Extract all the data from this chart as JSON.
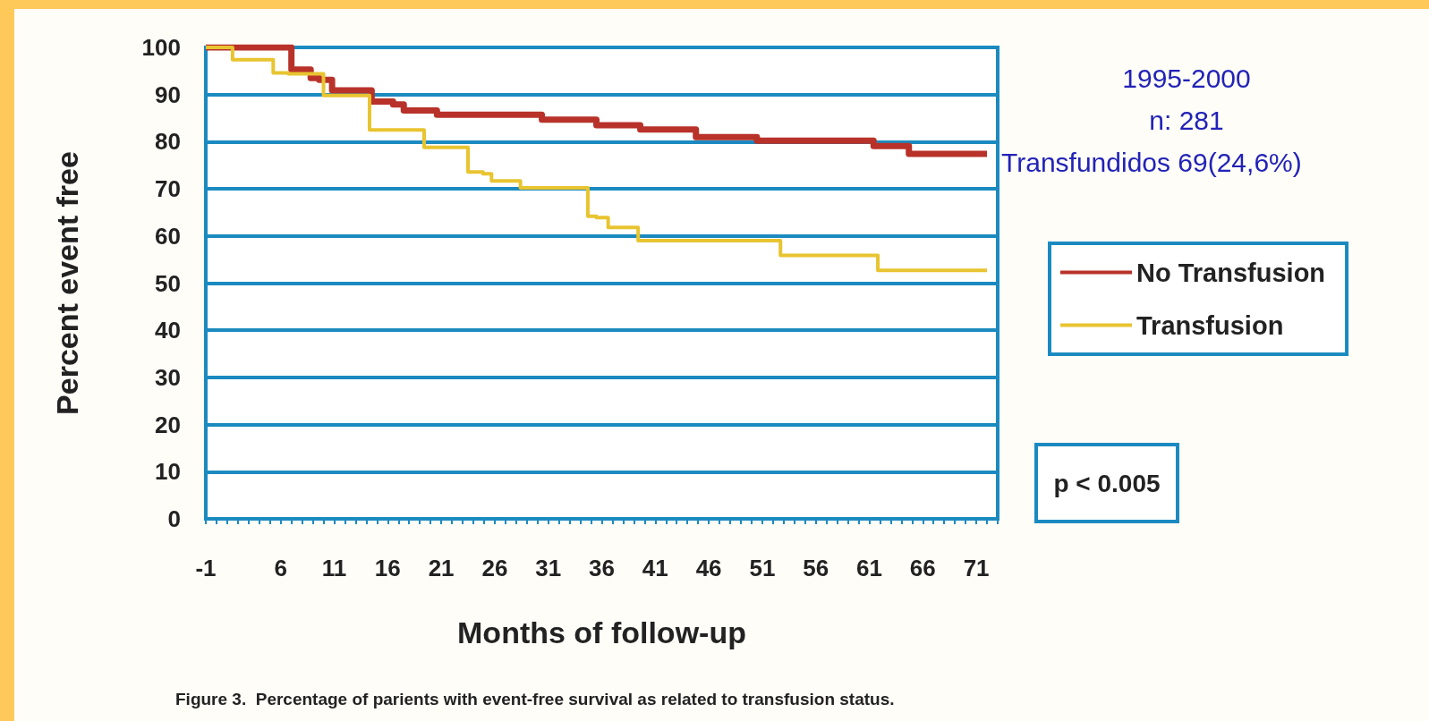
{
  "chart_data": {
    "type": "step",
    "xlabel": "Months of follow-up",
    "ylabel": "Percent event free",
    "xlim": [
      -1,
      73
    ],
    "xticks": [
      -1,
      6,
      11,
      16,
      21,
      26,
      31,
      36,
      41,
      46,
      51,
      56,
      61,
      66,
      71
    ],
    "ylim": [
      0,
      100
    ],
    "yticks": [
      0,
      10,
      20,
      30,
      40,
      50,
      60,
      70,
      80,
      90,
      100
    ],
    "grid": "y",
    "legend": "right",
    "marker": "none",
    "line_style": "solid",
    "series": [
      {
        "name": "No Transfusion",
        "color": "#b8322a",
        "x": [
          -1,
          3,
          7,
          8.8,
          9.6,
          10.8,
          12.4,
          14.5,
          16.5,
          17.5,
          19.8,
          20.6,
          29.6,
          30.4,
          34.1,
          35.5,
          38.6,
          39.6,
          43.4,
          44.8,
          49.4,
          50.5,
          60.4,
          61.4,
          63.5,
          64.7,
          72
        ],
        "values": [
          100,
          100,
          95.3,
          93.5,
          93.1,
          90.9,
          90.9,
          88.5,
          87.9,
          86.6,
          86.6,
          85.7,
          85.7,
          84.7,
          84.7,
          83.5,
          83.5,
          82.6,
          82.6,
          81,
          81,
          80.2,
          80.2,
          79.1,
          79.1,
          77.4,
          77.4
        ]
      },
      {
        "name": "Transfusion",
        "color": "#e8c430",
        "x": [
          -1,
          1.5,
          3.4,
          5.3,
          6.7,
          10,
          11.8,
          14.3,
          18.1,
          19.4,
          21.1,
          23.5,
          24.9,
          25.7,
          27.6,
          28.4,
          32.3,
          34.7,
          35.5,
          36.6,
          38.6,
          39.4,
          51,
          52.7,
          60.3,
          61.8,
          72
        ],
        "values": [
          100,
          97.4,
          97.4,
          94.6,
          94.4,
          89.8,
          89.8,
          82.5,
          82.5,
          78.8,
          78.8,
          73.6,
          73.2,
          71.7,
          71.7,
          70.2,
          70.2,
          64.2,
          63.9,
          61.8,
          61.8,
          59,
          59,
          55.9,
          55.9,
          52.7,
          52.7
        ]
      }
    ],
    "annotations": [
      "1995-2000",
      "n: 281",
      "Transfundidos 69(24,6%)",
      "p < 0.005",
      "Figure 3.  Percentage of parients with event-free survival as related to transfusion status."
    ]
  }
}
